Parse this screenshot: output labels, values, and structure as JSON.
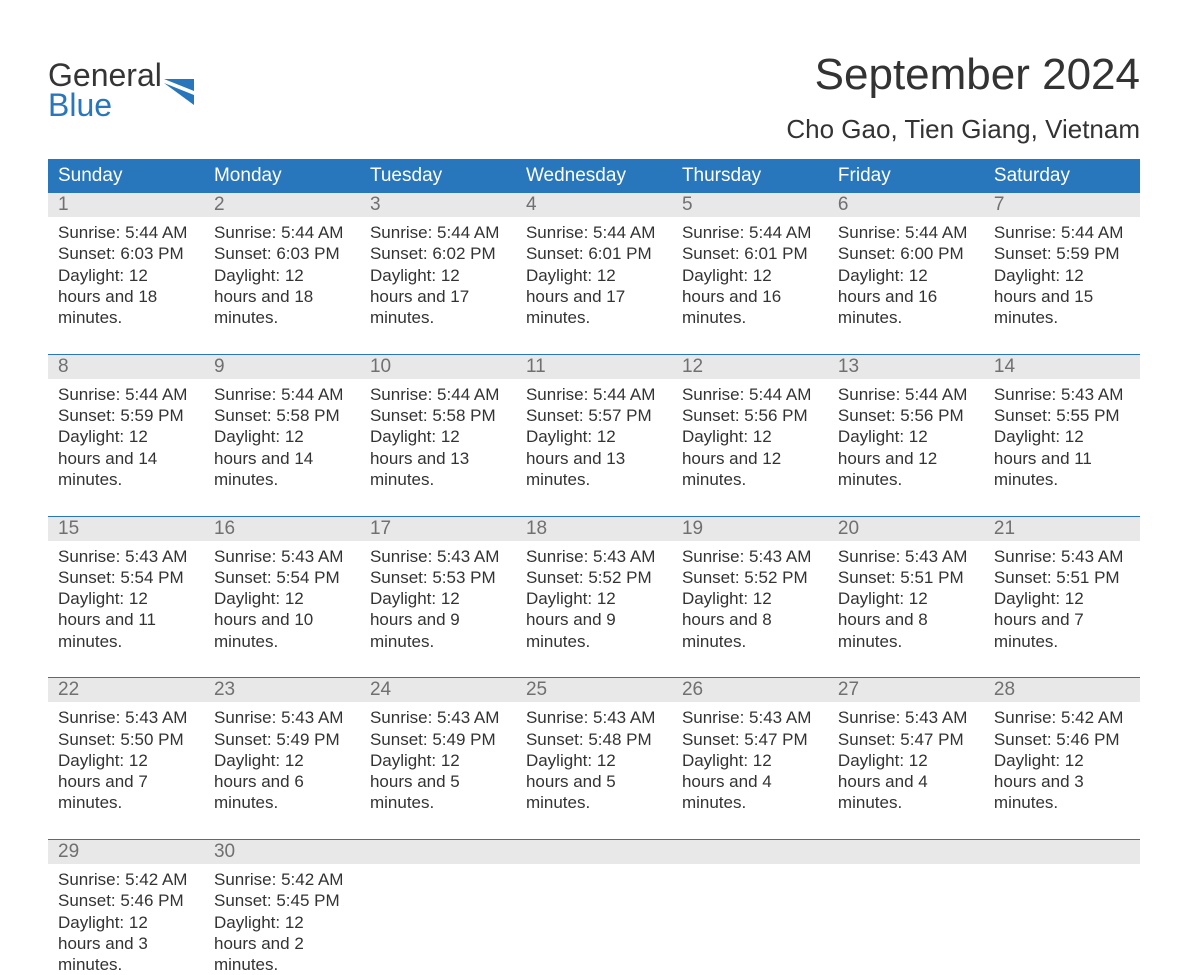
{
  "logo": {
    "line1": "General",
    "line2": "Blue"
  },
  "title": "September 2024",
  "location": "Cho Gao, Tien Giang, Vietnam",
  "colors": {
    "header_bg": "#2876bb",
    "header_fg": "#ffffff",
    "daynum_bg": "#e8e8e8",
    "daynum_fg": "#707070",
    "text": "#333333",
    "rule": "#2876bb",
    "logo_blue": "#2876bb"
  },
  "typography": {
    "title_fontsize": 44,
    "location_fontsize": 26,
    "header_fontsize": 19,
    "daynum_fontsize": 19,
    "body_fontsize": 17,
    "logo_fontsize": 32
  },
  "calendar": {
    "type": "table",
    "columns": [
      "Sunday",
      "Monday",
      "Tuesday",
      "Wednesday",
      "Thursday",
      "Friday",
      "Saturday"
    ],
    "weeks": [
      [
        {
          "day": "1",
          "sunrise": "Sunrise: 5:44 AM",
          "sunset": "Sunset: 6:03 PM",
          "daylight": "Daylight: 12 hours and 18 minutes."
        },
        {
          "day": "2",
          "sunrise": "Sunrise: 5:44 AM",
          "sunset": "Sunset: 6:03 PM",
          "daylight": "Daylight: 12 hours and 18 minutes."
        },
        {
          "day": "3",
          "sunrise": "Sunrise: 5:44 AM",
          "sunset": "Sunset: 6:02 PM",
          "daylight": "Daylight: 12 hours and 17 minutes."
        },
        {
          "day": "4",
          "sunrise": "Sunrise: 5:44 AM",
          "sunset": "Sunset: 6:01 PM",
          "daylight": "Daylight: 12 hours and 17 minutes."
        },
        {
          "day": "5",
          "sunrise": "Sunrise: 5:44 AM",
          "sunset": "Sunset: 6:01 PM",
          "daylight": "Daylight: 12 hours and 16 minutes."
        },
        {
          "day": "6",
          "sunrise": "Sunrise: 5:44 AM",
          "sunset": "Sunset: 6:00 PM",
          "daylight": "Daylight: 12 hours and 16 minutes."
        },
        {
          "day": "7",
          "sunrise": "Sunrise: 5:44 AM",
          "sunset": "Sunset: 5:59 PM",
          "daylight": "Daylight: 12 hours and 15 minutes."
        }
      ],
      [
        {
          "day": "8",
          "sunrise": "Sunrise: 5:44 AM",
          "sunset": "Sunset: 5:59 PM",
          "daylight": "Daylight: 12 hours and 14 minutes."
        },
        {
          "day": "9",
          "sunrise": "Sunrise: 5:44 AM",
          "sunset": "Sunset: 5:58 PM",
          "daylight": "Daylight: 12 hours and 14 minutes."
        },
        {
          "day": "10",
          "sunrise": "Sunrise: 5:44 AM",
          "sunset": "Sunset: 5:58 PM",
          "daylight": "Daylight: 12 hours and 13 minutes."
        },
        {
          "day": "11",
          "sunrise": "Sunrise: 5:44 AM",
          "sunset": "Sunset: 5:57 PM",
          "daylight": "Daylight: 12 hours and 13 minutes."
        },
        {
          "day": "12",
          "sunrise": "Sunrise: 5:44 AM",
          "sunset": "Sunset: 5:56 PM",
          "daylight": "Daylight: 12 hours and 12 minutes."
        },
        {
          "day": "13",
          "sunrise": "Sunrise: 5:44 AM",
          "sunset": "Sunset: 5:56 PM",
          "daylight": "Daylight: 12 hours and 12 minutes."
        },
        {
          "day": "14",
          "sunrise": "Sunrise: 5:43 AM",
          "sunset": "Sunset: 5:55 PM",
          "daylight": "Daylight: 12 hours and 11 minutes."
        }
      ],
      [
        {
          "day": "15",
          "sunrise": "Sunrise: 5:43 AM",
          "sunset": "Sunset: 5:54 PM",
          "daylight": "Daylight: 12 hours and 11 minutes."
        },
        {
          "day": "16",
          "sunrise": "Sunrise: 5:43 AM",
          "sunset": "Sunset: 5:54 PM",
          "daylight": "Daylight: 12 hours and 10 minutes."
        },
        {
          "day": "17",
          "sunrise": "Sunrise: 5:43 AM",
          "sunset": "Sunset: 5:53 PM",
          "daylight": "Daylight: 12 hours and 9 minutes."
        },
        {
          "day": "18",
          "sunrise": "Sunrise: 5:43 AM",
          "sunset": "Sunset: 5:52 PM",
          "daylight": "Daylight: 12 hours and 9 minutes."
        },
        {
          "day": "19",
          "sunrise": "Sunrise: 5:43 AM",
          "sunset": "Sunset: 5:52 PM",
          "daylight": "Daylight: 12 hours and 8 minutes."
        },
        {
          "day": "20",
          "sunrise": "Sunrise: 5:43 AM",
          "sunset": "Sunset: 5:51 PM",
          "daylight": "Daylight: 12 hours and 8 minutes."
        },
        {
          "day": "21",
          "sunrise": "Sunrise: 5:43 AM",
          "sunset": "Sunset: 5:51 PM",
          "daylight": "Daylight: 12 hours and 7 minutes."
        }
      ],
      [
        {
          "day": "22",
          "sunrise": "Sunrise: 5:43 AM",
          "sunset": "Sunset: 5:50 PM",
          "daylight": "Daylight: 12 hours and 7 minutes."
        },
        {
          "day": "23",
          "sunrise": "Sunrise: 5:43 AM",
          "sunset": "Sunset: 5:49 PM",
          "daylight": "Daylight: 12 hours and 6 minutes."
        },
        {
          "day": "24",
          "sunrise": "Sunrise: 5:43 AM",
          "sunset": "Sunset: 5:49 PM",
          "daylight": "Daylight: 12 hours and 5 minutes."
        },
        {
          "day": "25",
          "sunrise": "Sunrise: 5:43 AM",
          "sunset": "Sunset: 5:48 PM",
          "daylight": "Daylight: 12 hours and 5 minutes."
        },
        {
          "day": "26",
          "sunrise": "Sunrise: 5:43 AM",
          "sunset": "Sunset: 5:47 PM",
          "daylight": "Daylight: 12 hours and 4 minutes."
        },
        {
          "day": "27",
          "sunrise": "Sunrise: 5:43 AM",
          "sunset": "Sunset: 5:47 PM",
          "daylight": "Daylight: 12 hours and 4 minutes."
        },
        {
          "day": "28",
          "sunrise": "Sunrise: 5:42 AM",
          "sunset": "Sunset: 5:46 PM",
          "daylight": "Daylight: 12 hours and 3 minutes."
        }
      ],
      [
        {
          "day": "29",
          "sunrise": "Sunrise: 5:42 AM",
          "sunset": "Sunset: 5:46 PM",
          "daylight": "Daylight: 12 hours and 3 minutes."
        },
        {
          "day": "30",
          "sunrise": "Sunrise: 5:42 AM",
          "sunset": "Sunset: 5:45 PM",
          "daylight": "Daylight: 12 hours and 2 minutes."
        },
        null,
        null,
        null,
        null,
        null
      ]
    ]
  }
}
